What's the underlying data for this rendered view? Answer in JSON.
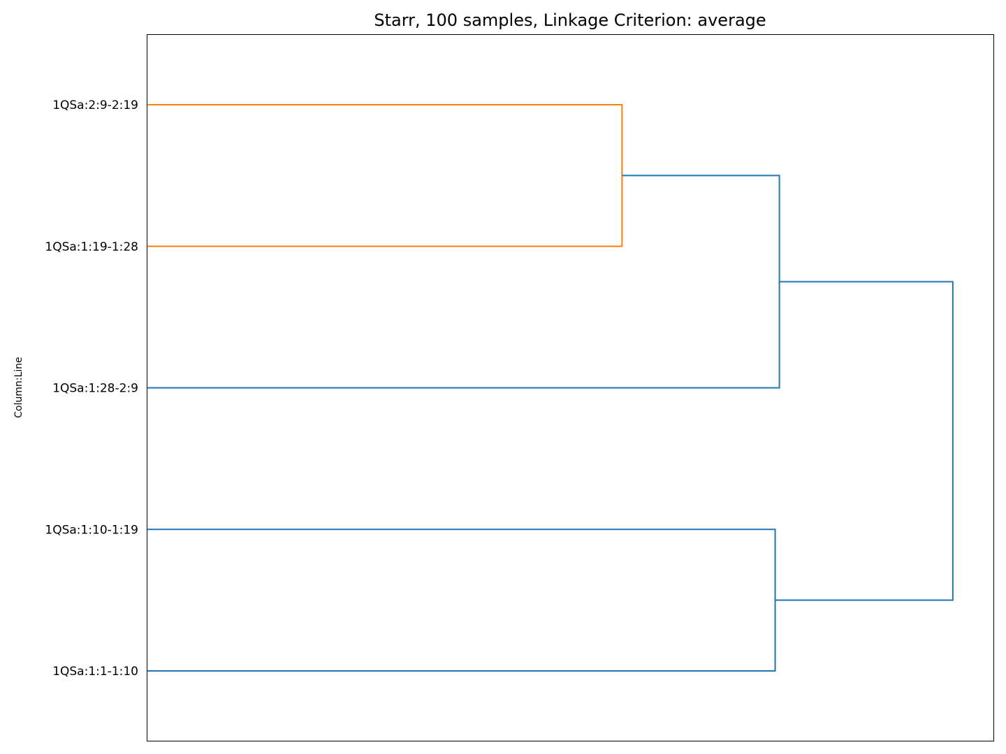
{
  "chart_data": {
    "type": "dendrogram",
    "title": "Starr, 100 samples, Linkage Criterion: average",
    "ylabel": "Column:Line",
    "orientation": "left",
    "xaxis_visible": false,
    "x_range": [
      0,
      1.0
    ],
    "leaves": [
      "1QSa:2:9-2:19",
      "1QSa:1:19-1:28",
      "1QSa:1:28-2:9",
      "1QSa:1:10-1:19",
      "1QSa:1:1-1:10"
    ],
    "links": [
      {
        "id": "c1",
        "children": [
          "1QSa:2:9-2:19",
          "1QSa:1:19-1:28"
        ],
        "height": 0.561,
        "color": "#ff7f0e"
      },
      {
        "id": "c2",
        "children": [
          "1QSa:1:10-1:19",
          "1QSa:1:1-1:10"
        ],
        "height": 0.742,
        "color": "#1f77b4"
      },
      {
        "id": "c3",
        "children": [
          "c1",
          "1QSa:1:28-2:9"
        ],
        "height": 0.747,
        "color": "#1f77b4"
      },
      {
        "id": "c4",
        "children": [
          "c3",
          "c2"
        ],
        "height": 0.952,
        "color": "#1f77b4"
      }
    ]
  }
}
